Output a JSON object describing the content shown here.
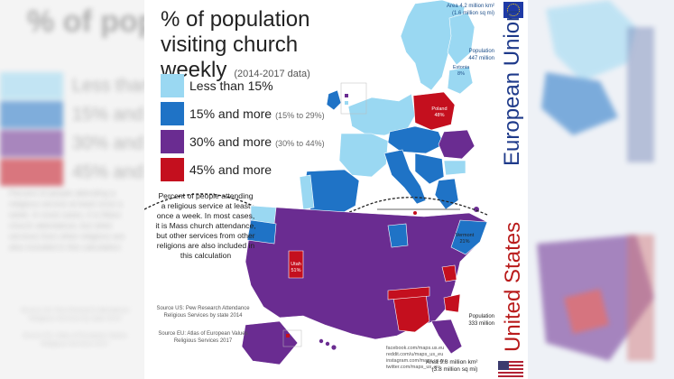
{
  "title": "% of population visiting church weekly",
  "subtitle": "(2014-2017 data)",
  "legend": [
    {
      "label": "Less than 15%",
      "range": "",
      "color": "#9ad8f2"
    },
    {
      "label": "15% and more",
      "range": "(15% to 29%)",
      "color": "#1f73c6"
    },
    {
      "label": "30% and more",
      "range": "(30% to 44%)",
      "color": "#6a2c91"
    },
    {
      "label": "45% and more",
      "range": "",
      "color": "#c40f1e"
    }
  ],
  "description": "Percent of people attending a religious service at least once a week. In most cases, it is Mass church attendance, but other services from other religions are also included in this calculation",
  "sources": {
    "us": "Source US: Pew Research Attendance Religious Services by state 2014",
    "eu": "Source EU: Atlas of European Values Religious Services 2017"
  },
  "eu": {
    "name": "European Union",
    "area": "Area 4.2 million km²",
    "area_sq_mi": "(1.6 million sq mi)",
    "population_label": "Population",
    "population": "447 million"
  },
  "us": {
    "name": "United States",
    "area": "Area 9.8 million km²",
    "area_sq_mi": "(3.8 million sq mi)",
    "population_label": "Population",
    "population": "333 million"
  },
  "map_labels": {
    "poland": "Poland",
    "poland_value": "48%",
    "estonia": "Estonia",
    "estonia_value": "8%",
    "utah": "Utah",
    "utah_value": "51%",
    "vermont": "Vermont",
    "vermont_value": "21%"
  },
  "links": [
    "facebook.com/maps.us.eu",
    "reddit.com/u/maps_us_eu",
    "instagram.com/maps.us.eu",
    "twitter.com/maps_us_eu"
  ],
  "colors": {
    "light": "#9ad8f2",
    "mid_blue": "#1f73c6",
    "purple": "#6a2c91",
    "red": "#c40f1e"
  }
}
